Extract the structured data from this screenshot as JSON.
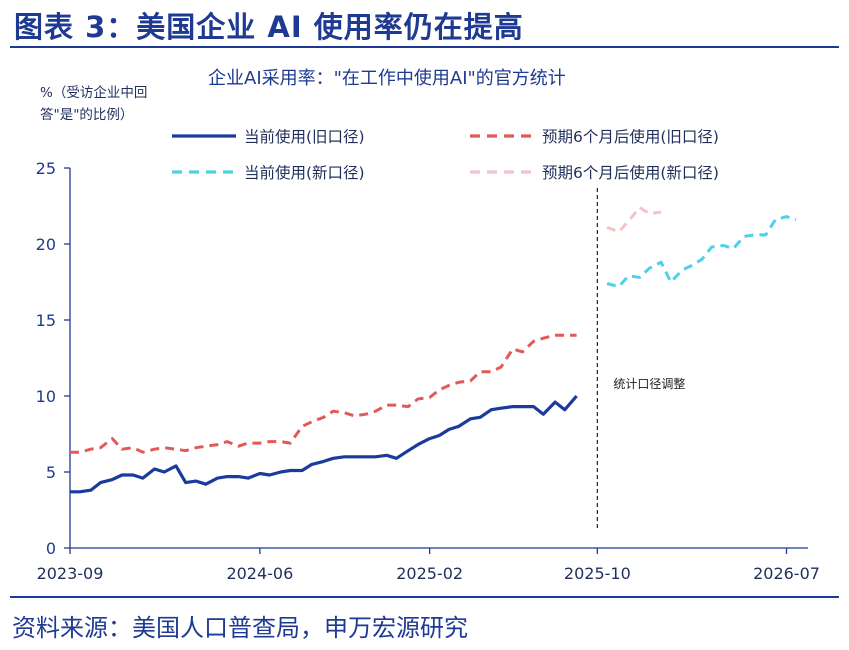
{
  "figure_title": "图表 3：美国企业 AI 使用率仍在提高",
  "source": "资料来源：美国人口普查局，申万宏源研究",
  "colors": {
    "accent": "#1f3a93",
    "current_old": "#1a3a9c",
    "expected_old": "#e05a5a",
    "current_new": "#4fd0e8",
    "expected_new": "#f3c4c8"
  },
  "chart_data": {
    "type": "line",
    "title": "企业AI采用率：\"在工作中使用AI\"的官方统计",
    "ylabel": "%（受访企业中回答\"是\"的比例）",
    "ylim": [
      0,
      25
    ],
    "yticks": [
      "0",
      "5",
      "10",
      "15",
      "20",
      "25"
    ],
    "xlim": [
      "2023-09-01",
      "2026-08-01"
    ],
    "xticks": [
      {
        "date": "2023-09-01",
        "label": "2023-09"
      },
      {
        "date": "2024-06-01",
        "label": "2024-06"
      },
      {
        "date": "2025-02-01",
        "label": "2025-02"
      },
      {
        "date": "2025-10-01",
        "label": "2025-10"
      },
      {
        "date": "2026-07-01",
        "label": "2026-07"
      }
    ],
    "annotation": {
      "text": "统计口径调整",
      "date": "2025-10-01"
    },
    "grid": false,
    "legend": "top",
    "series": [
      {
        "name": "当前使用(旧口径)",
        "style": "solid",
        "color": "#1a3a9c",
        "x": [
          "2023-09-01",
          "2023-09-15",
          "2023-10-01",
          "2023-10-15",
          "2023-11-01",
          "2023-11-15",
          "2023-12-01",
          "2023-12-15",
          "2024-01-01",
          "2024-01-15",
          "2024-02-01",
          "2024-02-15",
          "2024-03-01",
          "2024-03-15",
          "2024-04-01",
          "2024-04-15",
          "2024-05-01",
          "2024-05-15",
          "2024-06-01",
          "2024-06-15",
          "2024-07-01",
          "2024-07-15",
          "2024-08-01",
          "2024-08-15",
          "2024-09-01",
          "2024-09-15",
          "2024-10-01",
          "2024-10-15",
          "2024-11-01",
          "2024-11-15",
          "2024-12-01",
          "2024-12-15",
          "2025-01-01",
          "2025-01-15",
          "2025-02-01",
          "2025-02-15",
          "2025-03-01",
          "2025-03-15",
          "2025-04-01",
          "2025-04-15",
          "2025-05-01",
          "2025-05-15",
          "2025-06-01",
          "2025-06-15",
          "2025-07-01",
          "2025-07-15",
          "2025-08-01",
          "2025-08-15",
          "2025-09-01"
        ],
        "y": [
          3.7,
          3.7,
          3.8,
          4.3,
          4.5,
          4.8,
          4.8,
          4.6,
          5.2,
          5.0,
          5.4,
          4.3,
          4.4,
          4.2,
          4.6,
          4.7,
          4.7,
          4.6,
          4.9,
          4.8,
          5.0,
          5.1,
          5.1,
          5.5,
          5.7,
          5.9,
          6.0,
          6.0,
          6.0,
          6.0,
          6.1,
          5.9,
          6.4,
          6.8,
          7.2,
          7.4,
          7.8,
          8.0,
          8.5,
          8.6,
          9.1,
          9.2,
          9.3,
          9.3,
          9.3,
          8.8,
          9.6,
          9.1,
          10.0
        ]
      },
      {
        "name": "预期6个月后使用(旧口径)",
        "style": "dashed",
        "color": "#e05a5a",
        "x": [
          "2023-09-01",
          "2023-09-15",
          "2023-10-01",
          "2023-10-15",
          "2023-11-01",
          "2023-11-15",
          "2023-12-01",
          "2023-12-15",
          "2024-01-01",
          "2024-01-15",
          "2024-02-01",
          "2024-02-15",
          "2024-03-01",
          "2024-03-15",
          "2024-04-01",
          "2024-04-15",
          "2024-05-01",
          "2024-05-15",
          "2024-06-01",
          "2024-06-15",
          "2024-07-01",
          "2024-07-15",
          "2024-08-01",
          "2024-08-15",
          "2024-09-01",
          "2024-09-15",
          "2024-10-01",
          "2024-10-15",
          "2024-11-01",
          "2024-11-15",
          "2024-12-01",
          "2024-12-15",
          "2025-01-01",
          "2025-01-15",
          "2025-02-01",
          "2025-02-15",
          "2025-03-01",
          "2025-03-15",
          "2025-04-01",
          "2025-04-15",
          "2025-05-01",
          "2025-05-15",
          "2025-06-01",
          "2025-06-15",
          "2025-07-01",
          "2025-07-15",
          "2025-08-01",
          "2025-08-15",
          "2025-09-01"
        ],
        "y": [
          6.3,
          6.3,
          6.5,
          6.6,
          7.2,
          6.5,
          6.6,
          6.3,
          6.5,
          6.6,
          6.5,
          6.4,
          6.6,
          6.7,
          6.8,
          7.0,
          6.7,
          6.9,
          6.9,
          7.0,
          7.0,
          6.9,
          8.0,
          8.3,
          8.6,
          9.0,
          8.9,
          8.7,
          8.8,
          9.0,
          9.4,
          9.4,
          9.3,
          9.8,
          9.9,
          10.4,
          10.7,
          10.9,
          11.0,
          11.6,
          11.6,
          11.9,
          13.1,
          12.9,
          13.6,
          13.8,
          14.0,
          14.0,
          14.0
        ]
      },
      {
        "name": "当前使用(新口径)",
        "style": "dashed",
        "color": "#4fd0e8",
        "x": [
          "2025-10-15",
          "2025-11-01",
          "2025-11-15",
          "2025-12-01",
          "2025-12-15",
          "2026-01-01",
          "2026-01-15",
          "2026-02-01",
          "2026-02-15",
          "2026-03-01",
          "2026-03-15",
          "2026-04-01",
          "2026-04-15",
          "2026-05-01",
          "2026-05-15",
          "2026-06-01",
          "2026-06-15",
          "2026-07-01",
          "2026-07-15"
        ],
        "y": [
          17.4,
          17.2,
          17.9,
          17.8,
          18.4,
          18.8,
          17.5,
          18.3,
          18.6,
          19.0,
          19.8,
          19.9,
          19.7,
          20.5,
          20.6,
          20.6,
          21.6,
          21.8,
          21.6
        ]
      },
      {
        "name": "预期6个月后使用(新口径)",
        "style": "dashed",
        "color": "#f3c4c8",
        "x": [
          "2025-10-15",
          "2025-11-01",
          "2025-11-15",
          "2025-12-01",
          "2025-12-15",
          "2026-01-01"
        ],
        "y": [
          21.1,
          20.8,
          21.5,
          22.4,
          22.0,
          22.1
        ]
      }
    ]
  }
}
